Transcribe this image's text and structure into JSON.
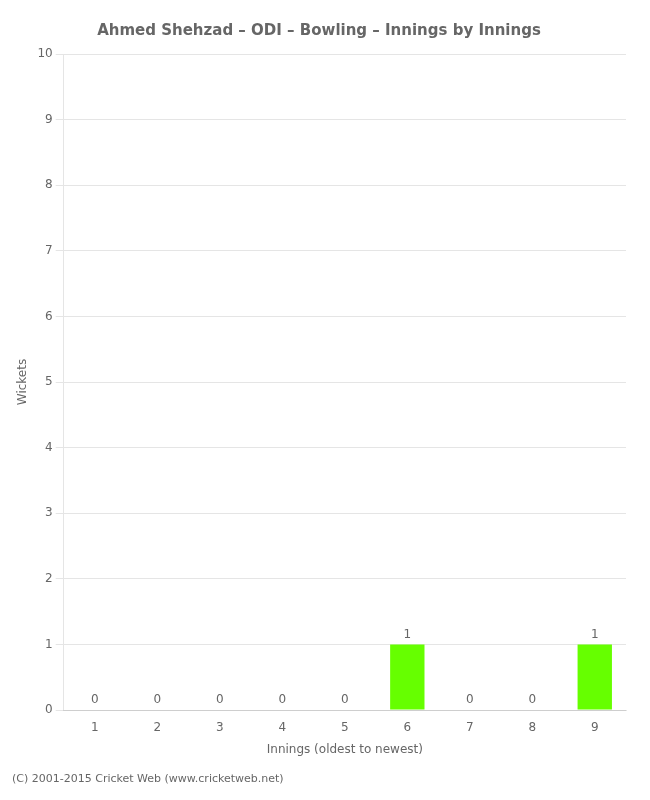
{
  "chart_data": {
    "type": "bar",
    "title": "Ahmed Shehzad – ODI – Bowling – Innings by Innings",
    "xlabel": "Innings (oldest to newest)",
    "ylabel": "Wickets",
    "categories": [
      "1",
      "2",
      "3",
      "4",
      "5",
      "6",
      "7",
      "8",
      "9"
    ],
    "values": [
      0,
      0,
      0,
      0,
      0,
      1,
      0,
      0,
      1
    ],
    "color": "#66ff00",
    "ylim": [
      0,
      10
    ],
    "yticks": [
      0,
      1,
      2,
      3,
      4,
      5,
      6,
      7,
      8,
      9,
      10
    ],
    "grid": true,
    "data_labels": true,
    "footnote": "(C) 2001-2015 Cricket Web (www.cricketweb.net)"
  }
}
